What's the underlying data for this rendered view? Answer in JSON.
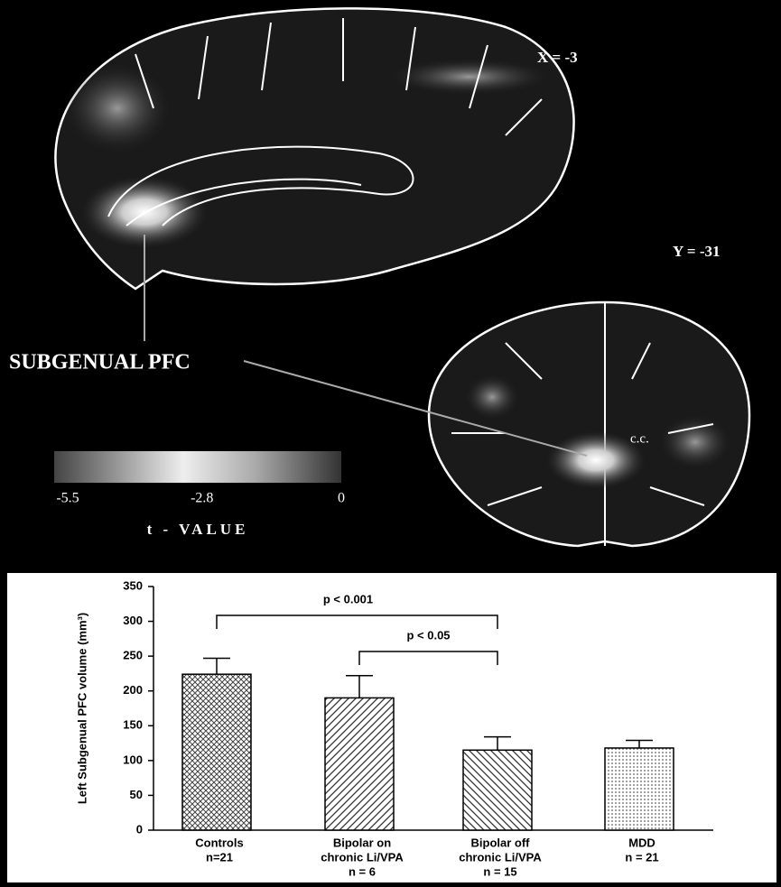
{
  "figure": {
    "sagittal_label": "X = -3",
    "coronal_label": "Y = -31",
    "region_label": "SUBGENUAL PFC",
    "cc_label": "c.c.",
    "colorbar": {
      "lim": [
        -5.5,
        0
      ],
      "ticks": [
        -5.5,
        -2.8,
        0
      ],
      "label": "t - VALUE"
    }
  },
  "chart_data": {
    "type": "bar",
    "ylabel": "Left Subgenual PFC volume (mm³)",
    "categories": [
      [
        "Controls",
        "n=21"
      ],
      [
        "Bipolar on",
        "chronic Li/VPA",
        "n = 6"
      ],
      [
        "Bipolar off",
        "chronic Li/VPA",
        "n = 15"
      ],
      [
        "MDD",
        "n = 21"
      ]
    ],
    "values": [
      224,
      190,
      115,
      118
    ],
    "errors": [
      23,
      32,
      19,
      11
    ],
    "ylim": [
      0,
      350
    ],
    "yticks": [
      0,
      50,
      100,
      150,
      200,
      250,
      300,
      350
    ],
    "annotations": [
      {
        "text": "p < 0.001"
      },
      {
        "text": "p < 0.05"
      }
    ]
  }
}
